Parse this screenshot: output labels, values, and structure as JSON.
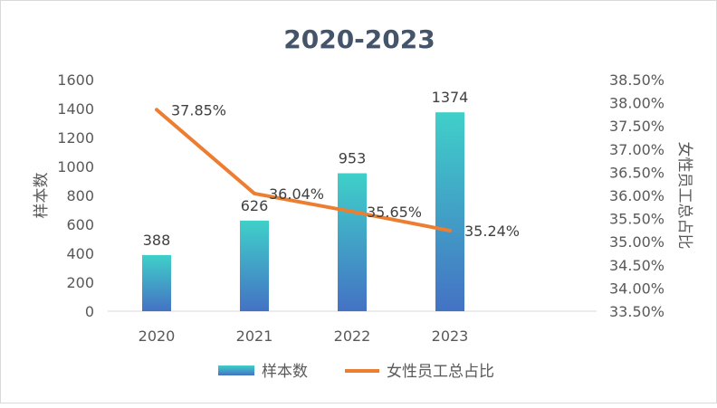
{
  "chart_data": {
    "type": "bar+line",
    "title": "2020-2023",
    "categories": [
      "2020",
      "2021",
      "2022",
      "2023"
    ],
    "series": [
      {
        "name": "样本数",
        "type": "bar",
        "axis": "left",
        "values": [
          388,
          626,
          953,
          1374
        ],
        "labels": [
          "388",
          "626",
          "953",
          "1374"
        ],
        "color_top": "#3fd0c9",
        "color_bottom": "#4472c4"
      },
      {
        "name": "女性员工总占比",
        "type": "line",
        "axis": "right",
        "values": [
          37.85,
          36.04,
          35.65,
          35.24
        ],
        "labels": [
          "37.85%",
          "36.04%",
          "35.65%",
          "35.24%"
        ],
        "color": "#ed7d31"
      }
    ],
    "ylabel_left": "样本数",
    "ylabel_right": "女性员工总占比",
    "ylim_left": [
      0,
      1600
    ],
    "yticks_left": [
      "0",
      "200",
      "400",
      "600",
      "800",
      "1000",
      "1200",
      "1400",
      "1600"
    ],
    "ylim_right": [
      33.5,
      38.5
    ],
    "yticks_right": [
      "33.50%",
      "34.00%",
      "34.50%",
      "35.00%",
      "35.50%",
      "36.00%",
      "36.50%",
      "37.00%",
      "37.50%",
      "38.00%",
      "38.50%"
    ],
    "grid": false,
    "legend": "bottom"
  }
}
